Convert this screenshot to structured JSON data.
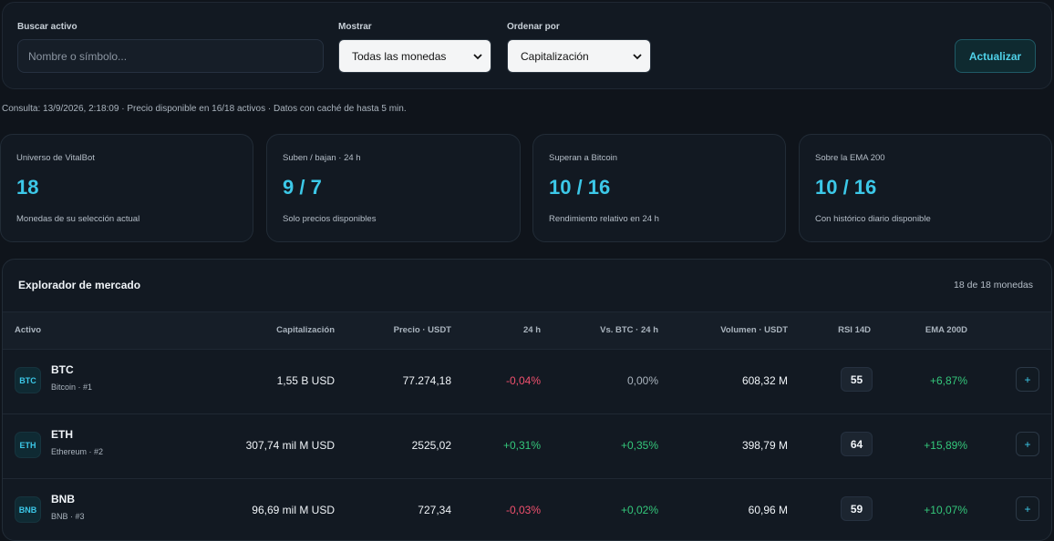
{
  "filters": {
    "search_label": "Buscar activo",
    "search_placeholder": "Nombre o símbolo...",
    "show_label": "Mostrar",
    "show_value": "Todas las monedas",
    "sort_label": "Ordenar por",
    "sort_value": "Capitalización",
    "update_button": "Actualizar"
  },
  "query_line": "Consulta: 13/9/2026, 2:18:09 · Precio disponible en 16/18 activos · Datos con caché de hasta 5 min.",
  "kpis": [
    {
      "title": "Universo de VitalBot",
      "value": "18",
      "sub": "Monedas de su selección actual"
    },
    {
      "title": "Suben / bajan · 24 h",
      "value": "9 / 7",
      "sub": "Solo precios disponibles"
    },
    {
      "title": "Superan a Bitcoin",
      "value": "10 / 16",
      "sub": "Rendimiento relativo en 24 h"
    },
    {
      "title": "Sobre la EMA 200",
      "value": "10 / 16",
      "sub": "Con histórico diario disponible"
    }
  ],
  "explorer": {
    "title": "Explorador de mercado",
    "count": "18 de 18 monedas",
    "headers": {
      "asset": "Activo",
      "cap": "Capitalización",
      "price": "Precio · USDT",
      "change24": "24 h",
      "vsbtc": "Vs. BTC · 24 h",
      "volume": "Volumen · USDT",
      "rsi": "RSI 14D",
      "ema": "EMA 200D"
    },
    "rows": [
      {
        "badge": "BTC",
        "symbol": "BTC",
        "name": "Bitcoin · #1",
        "cap": "1,55 B USD",
        "price": "77.274,18",
        "change24": "-0,04%",
        "vsbtc": "0,00%",
        "volume": "608,32 M",
        "rsi": "55",
        "ema": "+6,87%",
        "add": "+"
      },
      {
        "badge": "ETH",
        "symbol": "ETH",
        "name": "Ethereum · #2",
        "cap": "307,74 mil M USD",
        "price": "2525,02",
        "change24": "+0,31%",
        "vsbtc": "+0,35%",
        "volume": "398,79 M",
        "rsi": "64",
        "ema": "+15,89%",
        "add": "+"
      },
      {
        "badge": "BNB",
        "symbol": "BNB",
        "name": "BNB · #3",
        "cap": "96,69 mil M USD",
        "price": "727,34",
        "change24": "-0,03%",
        "vsbtc": "+0,02%",
        "volume": "60,96 M",
        "rsi": "59",
        "ema": "+10,07%",
        "add": "+"
      }
    ]
  },
  "colors": {
    "accent": "#3cc8e8",
    "positive": "#34c77b",
    "negative": "#f0506e",
    "background": "#0f141b"
  }
}
